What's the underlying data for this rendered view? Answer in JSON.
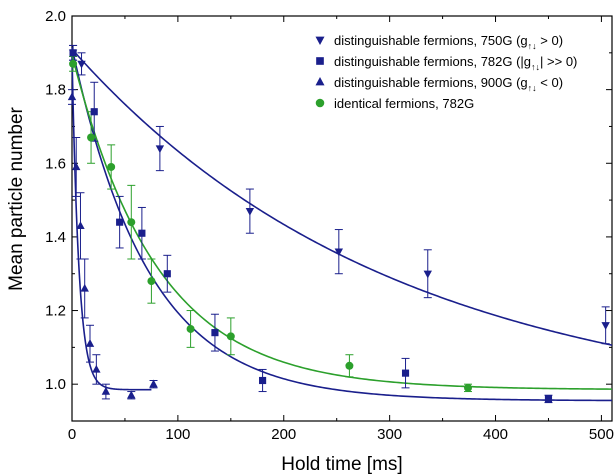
{
  "chart_data": {
    "type": "scatter",
    "xlabel": "Hold time [ms]",
    "ylabel": "Mean particle number",
    "xlim": [
      0,
      510
    ],
    "ylim": [
      0.9,
      2.0
    ],
    "x_ticks": [
      0,
      100,
      200,
      300,
      400,
      500
    ],
    "y_ticks": [
      1.0,
      1.2,
      1.4,
      1.6,
      1.8,
      2.0
    ],
    "x_tick_labels": [
      "0",
      "100",
      "200",
      "300",
      "400",
      "500"
    ],
    "y_tick_labels": [
      "1.0",
      "1.2",
      "1.4",
      "1.6",
      "1.8",
      "2.0"
    ],
    "grid": false,
    "legend_position": "top-right",
    "series": [
      {
        "name": "distinguishable fermions, 750G (g↑↓ > 0)",
        "legend_main": "distinguishable fermions, 750G (g",
        "legend_sub": "↑↓",
        "legend_tail": " > 0)",
        "marker": "triangle-down",
        "color": "#1a1f8c",
        "points": [
          {
            "x": 1,
            "y": 1.9,
            "err": 0.02
          },
          {
            "x": 9,
            "y": 1.87,
            "err": 0.03
          },
          {
            "x": 83,
            "y": 1.64,
            "err": 0.06
          },
          {
            "x": 168,
            "y": 1.47,
            "err": 0.06
          },
          {
            "x": 252,
            "y": 1.36,
            "err": 0.06
          },
          {
            "x": 336,
            "y": 1.3,
            "err": 0.065
          },
          {
            "x": 504,
            "y": 1.16,
            "err": 0.05
          }
        ],
        "fit": {
          "A": 0.99,
          "tau": 305,
          "C": 0.92
        }
      },
      {
        "name": "distinguishable fermions, 782G (|g↑↓| >> 0)",
        "legend_main": "distinguishable fermions, 782G (|g",
        "legend_sub": "↑↓",
        "legend_tail": "| >> 0)",
        "marker": "square",
        "color": "#1a1f8c",
        "points": [
          {
            "x": 1,
            "y": 1.9,
            "err": 0.02
          },
          {
            "x": 21,
            "y": 1.74,
            "err": 0.08
          },
          {
            "x": 45,
            "y": 1.44,
            "err": 0.07
          },
          {
            "x": 66,
            "y": 1.41,
            "err": 0.07
          },
          {
            "x": 90,
            "y": 1.3,
            "err": 0.05
          },
          {
            "x": 135,
            "y": 1.14,
            "err": 0.05
          },
          {
            "x": 180,
            "y": 1.01,
            "err": 0.03
          },
          {
            "x": 315,
            "y": 1.03,
            "err": 0.04
          },
          {
            "x": 450,
            "y": 0.96,
            "err": 0.01
          }
        ],
        "fit": {
          "A": 0.96,
          "tau": 72,
          "C": 0.955
        }
      },
      {
        "name": "distinguishable fermions, 900G (g↑↓ < 0)",
        "legend_main": "distinguishable fermions, 900G (g",
        "legend_sub": "↑↓",
        "legend_tail": " < 0)",
        "marker": "triangle-up",
        "color": "#1a1f8c",
        "points": [
          {
            "x": 0,
            "y": 1.78,
            "err": 0.02
          },
          {
            "x": 4,
            "y": 1.59,
            "err": 0.08
          },
          {
            "x": 8,
            "y": 1.43,
            "err": 0.09
          },
          {
            "x": 12,
            "y": 1.26,
            "err": 0.08
          },
          {
            "x": 17,
            "y": 1.11,
            "err": 0.05
          },
          {
            "x": 23,
            "y": 1.04,
            "err": 0.04
          },
          {
            "x": 32,
            "y": 0.98,
            "err": 0.02
          },
          {
            "x": 56,
            "y": 0.97,
            "err": 0.01
          },
          {
            "x": 77,
            "y": 1.0,
            "err": 0.01
          }
        ],
        "fit": {
          "A": 0.91,
          "tau": 6.5,
          "C": 0.985,
          "x_end": 75
        }
      },
      {
        "name": "identical fermions, 782G",
        "legend_main": "identical fermions, 782G",
        "legend_sub": "",
        "legend_tail": "",
        "marker": "circle",
        "color": "#2ca02c",
        "points": [
          {
            "x": 1,
            "y": 1.87,
            "err": 0.02
          },
          {
            "x": 18,
            "y": 1.67,
            "err": 0.07
          },
          {
            "x": 37,
            "y": 1.59,
            "err": 0.06
          },
          {
            "x": 56,
            "y": 1.44,
            "err": 0.1
          },
          {
            "x": 75,
            "y": 1.28,
            "err": 0.06
          },
          {
            "x": 112,
            "y": 1.15,
            "err": 0.05
          },
          {
            "x": 150,
            "y": 1.13,
            "err": 0.05
          },
          {
            "x": 262,
            "y": 1.05,
            "err": 0.03
          },
          {
            "x": 374,
            "y": 0.99,
            "err": 0.01
          }
        ],
        "fit": {
          "A": 0.91,
          "tau": 80,
          "C": 0.985
        }
      }
    ]
  }
}
